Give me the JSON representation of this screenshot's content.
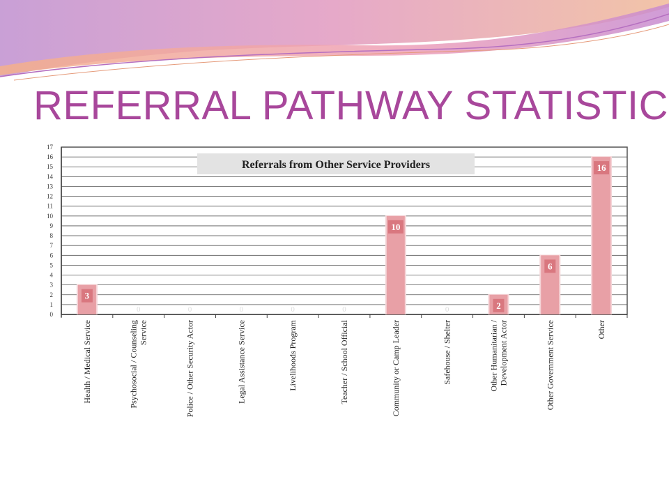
{
  "slide": {
    "title": "REFERRAL PATHWAY STATISTICS"
  },
  "theme": {
    "title_color": "#a8479b",
    "bar_color": "#e8a0a6",
    "bar_label_bg": "#d9777f"
  },
  "chart_data": {
    "type": "bar",
    "title": "Referrals from Other Service Providers",
    "xlabel": "",
    "ylabel": "",
    "ylim": [
      0,
      17
    ],
    "yticks": [
      0,
      1,
      2,
      3,
      4,
      5,
      6,
      7,
      8,
      9,
      10,
      11,
      12,
      13,
      14,
      15,
      16,
      17
    ],
    "grid": true,
    "categories": [
      [
        "Health / Medical Service"
      ],
      [
        "Psychosocial / Counseling",
        "Service"
      ],
      [
        "Police / Other Security Actor"
      ],
      [
        "Legal Assistance Service"
      ],
      [
        "Livelihoods Program"
      ],
      [
        "Teacher / School Official"
      ],
      [
        "Community or Camp Leader"
      ],
      [
        "Safehouse / Shelter"
      ],
      [
        "Other Humanitarian /",
        "Development Actor"
      ],
      [
        "Other Government Service"
      ],
      [
        "Other"
      ]
    ],
    "values": [
      3,
      0,
      0,
      0,
      0,
      0,
      10,
      0,
      2,
      6,
      16
    ]
  }
}
